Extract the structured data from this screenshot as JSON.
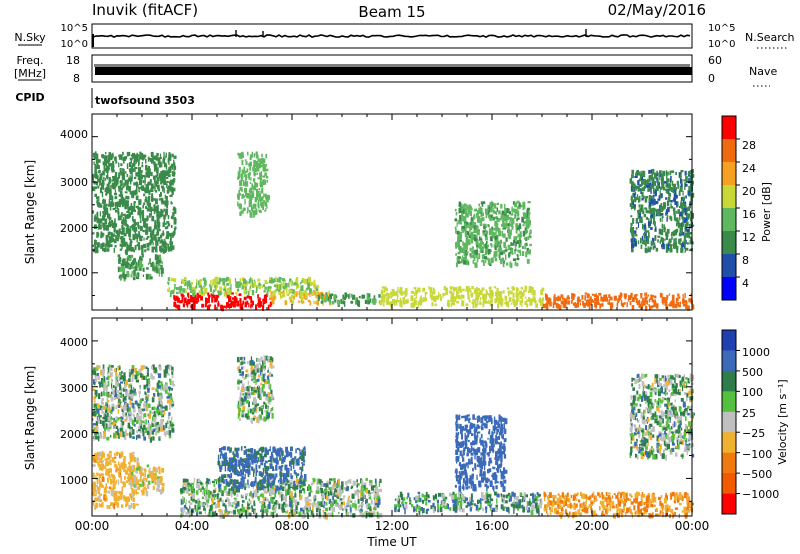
{
  "header": {
    "station": "Inuvik (fitACF)",
    "beam": "Beam 15",
    "date": "02/May/2016"
  },
  "panels": {
    "nsky": {
      "label": "N.Sky",
      "right_label": "N.Search",
      "ticks_left": [
        "10^5",
        "10^0"
      ],
      "ticks_right": [
        "10^5",
        "10^0"
      ]
    },
    "freq": {
      "label_top": "Freq.",
      "label_unit": "[MHz]",
      "right_label": "Nave",
      "ticks_left": [
        "18",
        "8"
      ],
      "ticks_right": [
        "60",
        "0"
      ]
    },
    "cpid": {
      "label": "CPID",
      "value": "twofsound 3503"
    }
  },
  "power_panel": {
    "ylabel": "Slant Range [km]",
    "yticks": [
      "4000",
      "3000",
      "2000",
      "1000"
    ],
    "colorbar_label": "Power [dB]",
    "colorbar_ticks": [
      "28",
      "24",
      "20",
      "16",
      "12",
      "8",
      "4"
    ]
  },
  "velocity_panel": {
    "ylabel": "Slant Range [km]",
    "yticks": [
      "4000",
      "3000",
      "2000",
      "1000"
    ],
    "colorbar_label": "Velocity [m s⁻¹]",
    "colorbar_ticks": [
      "1000",
      "500",
      "100",
      "25",
      "−25",
      "−100",
      "−500",
      "−1000"
    ]
  },
  "xaxis": {
    "label": "Time UT",
    "ticks": [
      "00:00",
      "04:00",
      "08:00",
      "12:00",
      "16:00",
      "20:00",
      "00:00"
    ]
  },
  "colors": {
    "power_scale": [
      "#0000ff",
      "#1f4fa8",
      "#3a8a4a",
      "#5fb85f",
      "#c8d838",
      "#f5a020",
      "#f06a10",
      "#ff0000"
    ],
    "velocity_scale": [
      "#2040b0",
      "#3a6ab8",
      "#2e7d4a",
      "#55c040",
      "#c0c0c0",
      "#f0b030",
      "#f07a10",
      "#f05a00",
      "#ff0000"
    ]
  },
  "chart_data": [
    {
      "type": "heatmap",
      "title": "Power",
      "xlabel": "Time UT",
      "ylabel": "Slant Range [km]",
      "xlim_hours": [
        0,
        24
      ],
      "ylim_km": [
        180,
        4500
      ],
      "colorbar": {
        "label": "Power [dB]",
        "range": [
          0,
          32
        ]
      },
      "regions": [
        {
          "t0": 0.0,
          "t1": 3.3,
          "r0": 1500,
          "r1": 3700,
          "value": 10
        },
        {
          "t0": 1.0,
          "t1": 2.8,
          "r0": 900,
          "r1": 1400,
          "value": 12
        },
        {
          "t0": 3.2,
          "t1": 7.2,
          "r0": 250,
          "r1": 550,
          "value": 30
        },
        {
          "t0": 3.0,
          "t1": 9.0,
          "r0": 550,
          "r1": 900,
          "value": 16
        },
        {
          "t0": 5.8,
          "t1": 7.0,
          "r0": 2300,
          "r1": 3700,
          "value": 14
        },
        {
          "t0": 7.0,
          "t1": 9.5,
          "r0": 350,
          "r1": 600,
          "value": 20
        },
        {
          "t0": 9.0,
          "t1": 11.5,
          "r0": 350,
          "r1": 550,
          "value": 12
        },
        {
          "t0": 11.5,
          "t1": 18.0,
          "r0": 300,
          "r1": 700,
          "value": 18
        },
        {
          "t0": 14.5,
          "t1": 17.5,
          "r0": 1200,
          "r1": 2600,
          "value": 13
        },
        {
          "t0": 18.0,
          "t1": 24.0,
          "r0": 250,
          "r1": 550,
          "value": 26
        },
        {
          "t0": 21.5,
          "t1": 24.0,
          "r0": 1500,
          "r1": 3300,
          "value": 9
        }
      ]
    },
    {
      "type": "heatmap",
      "title": "Velocity",
      "xlabel": "Time UT",
      "ylabel": "Slant Range [km]",
      "xlim_hours": [
        0,
        24
      ],
      "ylim_km": [
        180,
        4500
      ],
      "colorbar": {
        "label": "Velocity [m s⁻¹]",
        "range": [
          -1000,
          1000
        ]
      },
      "regions": [
        {
          "t0": 0.0,
          "t1": 3.2,
          "r0": 1900,
          "r1": 3500,
          "value": 0
        },
        {
          "t0": 0.0,
          "t1": 1.8,
          "r0": 400,
          "r1": 1600,
          "value": -200
        },
        {
          "t0": 1.5,
          "t1": 2.8,
          "r0": 700,
          "r1": 1300,
          "value": -100
        },
        {
          "t0": 3.5,
          "t1": 11.5,
          "r0": 200,
          "r1": 1000,
          "value": 0
        },
        {
          "t0": 5.8,
          "t1": 7.2,
          "r0": 2300,
          "r1": 3700,
          "value": 0
        },
        {
          "t0": 5.0,
          "t1": 8.5,
          "r0": 800,
          "r1": 1700,
          "value": 150
        },
        {
          "t0": 14.5,
          "t1": 16.5,
          "r0": 800,
          "r1": 2400,
          "value": 300
        },
        {
          "t0": 12.0,
          "t1": 18.0,
          "r0": 300,
          "r1": 700,
          "value": 50
        },
        {
          "t0": 18.0,
          "t1": 24.0,
          "r0": 200,
          "r1": 700,
          "value": -300
        },
        {
          "t0": 21.5,
          "t1": 24.0,
          "r0": 1500,
          "r1": 3300,
          "value": 0
        }
      ]
    }
  ]
}
